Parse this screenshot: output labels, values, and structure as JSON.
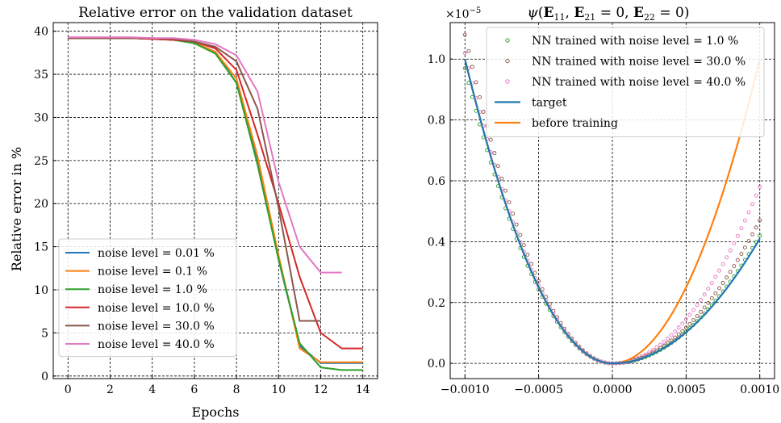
{
  "chart_data": [
    {
      "type": "line",
      "title": "Relative error on the validation dataset",
      "xlabel": "Epochs",
      "ylabel": "Relative error in %",
      "xlim": [
        -0.7,
        14.7
      ],
      "ylim": [
        -0.3,
        41
      ],
      "xticks": [
        0,
        2,
        4,
        6,
        8,
        10,
        12,
        14
      ],
      "xtick_labels": [
        "0",
        "2",
        "4",
        "6",
        "8",
        "10",
        "12",
        "14"
      ],
      "yticks": [
        0,
        5,
        10,
        15,
        20,
        25,
        30,
        35,
        40
      ],
      "ytick_labels": [
        "0",
        "5",
        "10",
        "15",
        "20",
        "25",
        "30",
        "35",
        "40"
      ],
      "grid": true,
      "legend_position": "lower-left",
      "x": [
        0,
        1,
        2,
        3,
        4,
        5,
        6,
        7,
        8,
        9,
        10,
        11,
        12,
        13,
        14
      ],
      "series": [
        {
          "name": "noise level = 0.01 %",
          "color": "#1f77b4",
          "values": [
            39.2,
            39.2,
            39.2,
            39.2,
            39.1,
            39.0,
            38.7,
            37.6,
            34.0,
            25.0,
            13.5,
            3.5,
            1.5,
            1.5,
            1.5
          ]
        },
        {
          "name": "noise level = 0.1 %",
          "color": "#ff7f0e",
          "values": [
            39.2,
            39.2,
            39.2,
            39.2,
            39.1,
            39.0,
            38.7,
            37.6,
            34.5,
            25.5,
            14.0,
            3.2,
            1.6,
            1.6,
            1.6
          ]
        },
        {
          "name": "noise level = 1.0 %",
          "color": "#2ca02c",
          "values": [
            39.2,
            39.2,
            39.2,
            39.2,
            39.1,
            39.0,
            38.6,
            37.4,
            34.0,
            24.5,
            13.5,
            3.8,
            1.0,
            0.7,
            0.7
          ]
        },
        {
          "name": "noise level = 10.0 %",
          "color": "#d62728",
          "values": [
            39.2,
            39.2,
            39.2,
            39.2,
            39.1,
            39.0,
            38.8,
            38.0,
            35.5,
            28.0,
            20.0,
            11.5,
            5.0,
            3.2,
            3.2
          ]
        },
        {
          "name": "noise level = 30.0 %",
          "color": "#8c564b",
          "values": [
            39.2,
            39.2,
            39.2,
            39.2,
            39.2,
            39.1,
            38.8,
            38.2,
            36.5,
            31.0,
            19.5,
            6.4,
            6.4,
            null,
            null
          ]
        },
        {
          "name": "noise level = 40.0 %",
          "color": "#e377c2",
          "values": [
            39.3,
            39.3,
            39.3,
            39.3,
            39.2,
            39.2,
            39.0,
            38.5,
            37.2,
            33.0,
            22.5,
            15.0,
            12.0,
            12.0,
            null
          ]
        }
      ]
    },
    {
      "type": "line",
      "title": "ψ(E11, E21 = 0, E22 = 0)",
      "title_display": {
        "psi": "ψ",
        "e11": "E",
        "e11_sub": "11",
        "e21": "E",
        "e21_sub": "21",
        "e22": "E",
        "e22_sub": "22",
        "eq": "= 0"
      },
      "xlabel": "",
      "ylabel": "",
      "y_multiplier": "×10⁻⁵",
      "y_multiplier_display": {
        "base": "×10",
        "exp": "−5"
      },
      "xlim": [
        -0.0011,
        0.0011
      ],
      "ylim": [
        -5e-07,
        1.12e-05
      ],
      "xticks": [
        -0.001,
        -0.0005,
        0,
        0.0005,
        0.001
      ],
      "xtick_labels": [
        "−0.0010",
        "−0.0005",
        "0.0000",
        "0.0005",
        "0.0010"
      ],
      "yticks": [
        0,
        2e-06,
        4e-06,
        6e-06,
        8e-06,
        1e-05
      ],
      "ytick_labels": [
        "0.0",
        "0.2",
        "0.4",
        "0.6",
        "0.8",
        "1.0"
      ],
      "grid": true,
      "legend_position": "upper-right",
      "curves": {
        "target": {
          "name": "target",
          "color": "#1f77b4",
          "left_value": 1e-05,
          "right_value": 4.1e-06
        },
        "before_training": {
          "name": "before training",
          "color": "#ff7f0e",
          "left_value": 1e-05,
          "right_value": 1e-05
        }
      },
      "scatter_series": [
        {
          "name": "NN trained with noise level = 1.0 %",
          "color": "#2ca02c",
          "left_value": 9.7e-06,
          "right_value": 4.2e-06
        },
        {
          "name": "NN trained with noise level = 30.0 %",
          "color": "#8c564b",
          "left_value": 1.08e-05,
          "right_value": 4.7e-06
        },
        {
          "name": "NN trained with noise level = 40.0 %",
          "color": "#e377c2",
          "left_value": 1.02e-05,
          "right_value": 5.8e-06
        }
      ],
      "points_per_series": 81
    }
  ]
}
